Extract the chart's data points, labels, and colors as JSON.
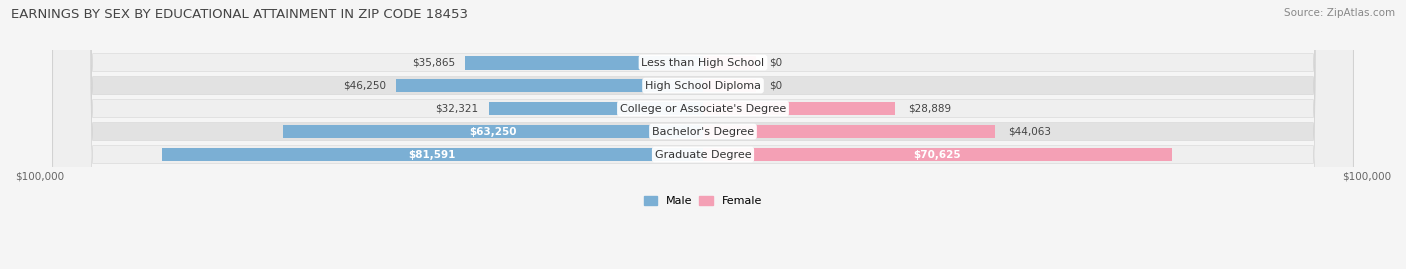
{
  "title": "EARNINGS BY SEX BY EDUCATIONAL ATTAINMENT IN ZIP CODE 18453",
  "source": "Source: ZipAtlas.com",
  "categories": [
    "Less than High School",
    "High School Diploma",
    "College or Associate's Degree",
    "Bachelor's Degree",
    "Graduate Degree"
  ],
  "male_values": [
    35865,
    46250,
    32321,
    63250,
    81591
  ],
  "female_values": [
    0,
    0,
    28889,
    44063,
    70625
  ],
  "female_stub_values": [
    8000,
    8000,
    28889,
    44063,
    70625
  ],
  "male_color": "#7bafd4",
  "female_color": "#f4a0b5",
  "male_label": "Male",
  "female_label": "Female",
  "xlim": 100000,
  "title_fontsize": 9.5,
  "source_fontsize": 7.5,
  "label_fontsize": 8,
  "value_fontsize": 7.5,
  "row_bg_light": "#efefef",
  "row_bg_dark": "#e2e2e2",
  "fig_bg": "#f5f5f5"
}
